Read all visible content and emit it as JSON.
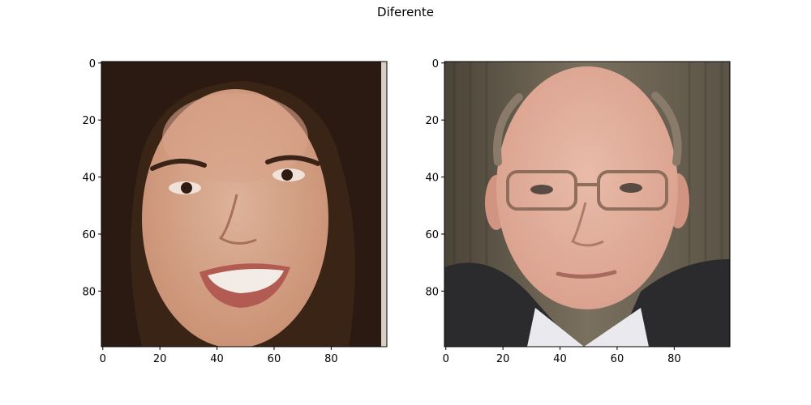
{
  "figure": {
    "title": "Diferente"
  },
  "chart_data": [
    {
      "type": "image",
      "subject": "smiling young woman with long dark hair",
      "x_ticks": [
        0,
        20,
        40,
        60,
        80
      ],
      "y_ticks": [
        0,
        20,
        40,
        60,
        80
      ],
      "xlim": [
        -0.5,
        99.5
      ],
      "ylim": [
        99.5,
        -0.5
      ],
      "palette": {
        "background": "#3a2416",
        "hair": "#2a1a12",
        "skin": "#c98f72",
        "skin_highlight": "#ddb39a",
        "lips": "#b25b52",
        "teeth": "#f3ece6",
        "eyes": "#2e1c14",
        "right_edge": "#d8cfc4"
      }
    },
    {
      "type": "image",
      "subject": "older balding man with glasses in a dark suit",
      "x_ticks": [
        0,
        20,
        40,
        60,
        80
      ],
      "y_ticks": [
        0,
        20,
        40,
        60,
        80
      ],
      "xlim": [
        -0.5,
        99.5
      ],
      "ylim": [
        99.5,
        -0.5
      ],
      "palette": {
        "background": "#6b6254",
        "background_dark": "#4b4438",
        "skin": "#d9a08c",
        "skin_highlight": "#e8bba8",
        "hair": "#8a7a6a",
        "glasses": "#8f6e5c",
        "suit": "#2b2b2e",
        "shirt": "#e9e9ee",
        "eyes": "#5a4a44"
      }
    }
  ]
}
